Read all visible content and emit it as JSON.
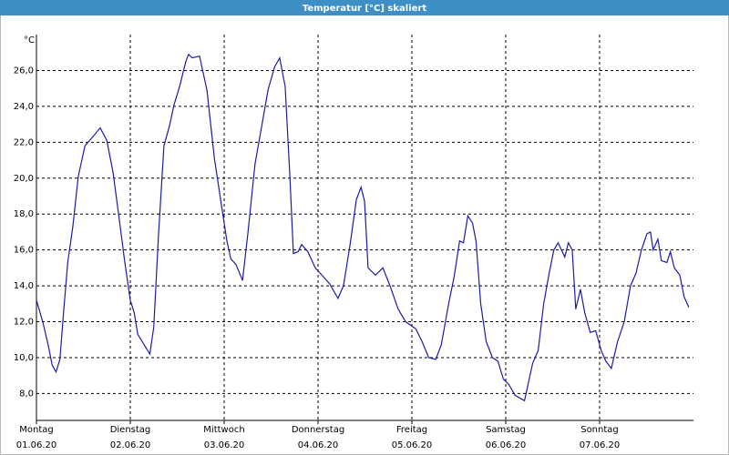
{
  "chart_data": {
    "type": "line",
    "title": "Temperatur [°C] skaliert",
    "y_unit": "°C",
    "color": "#1c1ca6",
    "grid": true,
    "xlim": [
      0,
      168
    ],
    "ylim": [
      6.5,
      28.0
    ],
    "xticks": [
      {
        "value": 0,
        "label": "Montag",
        "date": "01.06.20"
      },
      {
        "value": 24,
        "label": "Dienstag",
        "date": "02.06.20"
      },
      {
        "value": 48,
        "label": "Mittwoch",
        "date": "03.06.20"
      },
      {
        "value": 72,
        "label": "Donnerstag",
        "date": "04.06.20"
      },
      {
        "value": 96,
        "label": "Freitag",
        "date": "05.06.20"
      },
      {
        "value": 120,
        "label": "Samstag",
        "date": "06.06.20"
      },
      {
        "value": 144,
        "label": "Sonntag",
        "date": "07.06.20"
      }
    ],
    "yticks": [
      {
        "value": 8,
        "label": "8,0"
      },
      {
        "value": 10,
        "label": "10,0"
      },
      {
        "value": 12,
        "label": "12,0"
      },
      {
        "value": 14,
        "label": "14,0"
      },
      {
        "value": 16,
        "label": "16,0"
      },
      {
        "value": 18,
        "label": "18,0"
      },
      {
        "value": 20,
        "label": "20,0"
      },
      {
        "value": 22,
        "label": "22,0"
      },
      {
        "value": 24,
        "label": "24,0"
      },
      {
        "value": 26,
        "label": "26,0"
      }
    ],
    "x": [
      0,
      1.6,
      3,
      4,
      5,
      6,
      7,
      8,
      9.3,
      10.7,
      12.4,
      14,
      16.3,
      18,
      19.6,
      21,
      22.6,
      24,
      25,
      25.9,
      27.3,
      29,
      30,
      31.2,
      32.6,
      34,
      35.2,
      36.6,
      38.2,
      38.9,
      39.8,
      41.7,
      43.6,
      45.5,
      47.3,
      48.7,
      49.7,
      51,
      52.7,
      54.1,
      55.9,
      57.6,
      59.2,
      60.9,
      62.2,
      63.6,
      64.8,
      65.7,
      66.9,
      67.8,
      69.4,
      71.3,
      73.4,
      75,
      77.1,
      78.5,
      80.2,
      81.8,
      83,
      83.9,
      84.8,
      86.7,
      88.6,
      90.4,
      92.5,
      94.4,
      97,
      98.6,
      100.3,
      102.1,
      103.5,
      105.4,
      106.8,
      108.2,
      109.2,
      110.3,
      111.5,
      112.4,
      113.6,
      115,
      116.6,
      118,
      119.4,
      120.8,
      122.4,
      124.8,
      125.5,
      126.9,
      128.3,
      129.7,
      131.1,
      132.3,
      133.4,
      135.1,
      136,
      137,
      137.9,
      139.1,
      140.2,
      141.6,
      143,
      144.4,
      145.6,
      147,
      148.6,
      150.3,
      151.9,
      153.3,
      154.7,
      156.1,
      157,
      157.7,
      158.9,
      159.8,
      161.2,
      162.1,
      163.1,
      164.5,
      165.6,
      166.8
    ],
    "values": [
      13.2,
      12.0,
      10.7,
      9.6,
      9.2,
      9.9,
      12.7,
      15.3,
      17.3,
      20.1,
      21.8,
      22.2,
      22.8,
      22.1,
      20.3,
      18.0,
      15.3,
      13.2,
      12.5,
      11.3,
      10.8,
      10.2,
      11.7,
      16.8,
      21.8,
      22.9,
      24.1,
      25.1,
      26.5,
      26.9,
      26.7,
      26.8,
      24.9,
      21.1,
      18.5,
      16.5,
      15.5,
      15.2,
      14.3,
      17.0,
      20.8,
      22.9,
      24.9,
      26.2,
      26.7,
      25.1,
      20.1,
      15.8,
      15.9,
      16.3,
      15.9,
      15.0,
      14.5,
      14.1,
      13.3,
      14.0,
      16.3,
      18.8,
      19.5,
      18.7,
      15.0,
      14.6,
      15.0,
      14.0,
      12.7,
      12.0,
      11.6,
      10.9,
      10.0,
      9.9,
      10.7,
      13.0,
      14.5,
      16.5,
      16.4,
      17.9,
      17.5,
      16.5,
      13.0,
      10.9,
      10.0,
      9.8,
      8.8,
      8.5,
      7.9,
      7.6,
      8.3,
      9.7,
      10.4,
      13.0,
      14.7,
      16.0,
      16.4,
      15.6,
      16.4,
      16.0,
      12.7,
      13.8,
      12.5,
      11.4,
      11.5,
      10.4,
      9.8,
      9.4,
      10.9,
      12.0,
      14.0,
      14.7,
      16.0,
      16.9,
      17.0,
      16.0,
      16.6,
      15.4,
      15.3,
      15.9,
      15.0,
      14.6,
      13.4,
      12.8
    ]
  }
}
